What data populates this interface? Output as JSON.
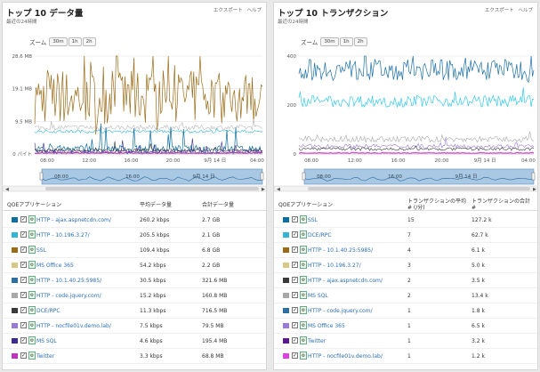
{
  "colors": {
    "link": "#2a6fb5",
    "nav_fill": "#a8c8e4",
    "nav_border": "#5d8fbf"
  },
  "common": {
    "export": "エクスポート",
    "help": "ヘルプ",
    "zoom_label": "ズーム",
    "zoom_options": [
      "30m",
      "1h",
      "2h"
    ],
    "subtitle": "最近の24時間",
    "xticks": [
      "08:00",
      "12:00",
      "16:00",
      "20:00",
      "9月 14 日",
      "04:00"
    ],
    "nav_ticks": [
      "08:00",
      "16:00",
      "9月 14 日"
    ]
  },
  "left": {
    "title": "トップ 10 データ量",
    "yticks": [
      "28.6 MB",
      "19.1 MB",
      "9.5 MB",
      "0 バイト"
    ],
    "columns": [
      "QOEアプリケーション",
      "平均データ量",
      "合計データ量"
    ],
    "rows": [
      {
        "color": "#0f6e9f",
        "name": "HTTP - ajax.aspnetcdn.com/",
        "v1": "260.2 kbps",
        "v2": "2.7 GB"
      },
      {
        "color": "#34b5d6",
        "name": "HTTP - 10.196.3.27/",
        "v1": "205.5 kbps",
        "v2": "2.1 GB"
      },
      {
        "color": "#9b6c18",
        "name": "SSL",
        "v1": "109.4 kbps",
        "v2": "6.8 GB"
      },
      {
        "color": "#d8c886",
        "name": "MS Office 365",
        "v1": "54.2 kbps",
        "v2": "2.2 GB"
      },
      {
        "color": "#2f6f9f",
        "name": "HTTP - 10.1.40.25:5985/",
        "v1": "30.5 kbps",
        "v2": "321.6 MB"
      },
      {
        "color": "#a8a8a8",
        "name": "HTTP - code.jquery.com/",
        "v1": "15.2 kbps",
        "v2": "160.8 MB"
      },
      {
        "color": "#3a3a3a",
        "name": "DCE/RPC",
        "v1": "11.3 kbps",
        "v2": "716.5 MB"
      },
      {
        "color": "#9a7ad8",
        "name": "HTTP - nocfile01v.demo.lab/",
        "v1": "7.5 kbps",
        "v2": "79.5 MB"
      },
      {
        "color": "#3c2a8c",
        "name": "MS SQL",
        "v1": "4.6 kbps",
        "v2": "195.4 MB"
      },
      {
        "color": "#c033c0",
        "name": "Twitter",
        "v1": "3.3 kbps",
        "v2": "68.8 MB"
      }
    ]
  },
  "right": {
    "title": "トップ 10 トランザクション",
    "yticks": [
      "400",
      "200",
      "0"
    ],
    "columns": [
      "QOEアプリケーション",
      "トランザクションの平均 # (/分)",
      "トランザクションの合計 #"
    ],
    "rows": [
      {
        "color": "#0f6e9f",
        "name": "SSL",
        "v1": "15",
        "v2": "127.2 k"
      },
      {
        "color": "#34b5d6",
        "name": "DCE/RPC",
        "v1": "7",
        "v2": "62.7 k"
      },
      {
        "color": "#9b6c18",
        "name": "HTTP - 10.1.40.25:5985/",
        "v1": "4",
        "v2": "6.1 k"
      },
      {
        "color": "#d8c886",
        "name": "HTTP - 10.196.3.27/",
        "v1": "3",
        "v2": "5.0 k"
      },
      {
        "color": "#3a3a3a",
        "name": "HTTP - ajax.aspnetcdn.com/",
        "v1": "2",
        "v2": "3.5 k"
      },
      {
        "color": "#a8a8a8",
        "name": "MS SQL",
        "v1": "2",
        "v2": "13.4 k"
      },
      {
        "color": "#2f6f9f",
        "name": "HTTP - code.jquery.com/",
        "v1": "1",
        "v2": "1.8 k"
      },
      {
        "color": "#9a7ad8",
        "name": "MS Office 365",
        "v1": "1",
        "v2": "6.5 k"
      },
      {
        "color": "#5a1a8c",
        "name": "Twitter",
        "v1": "1",
        "v2": "3.2 k"
      },
      {
        "color": "#e040e0",
        "name": "HTTP - nocfile01v.demo.lab/",
        "v1": "1",
        "v2": "1.2 k"
      }
    ]
  }
}
